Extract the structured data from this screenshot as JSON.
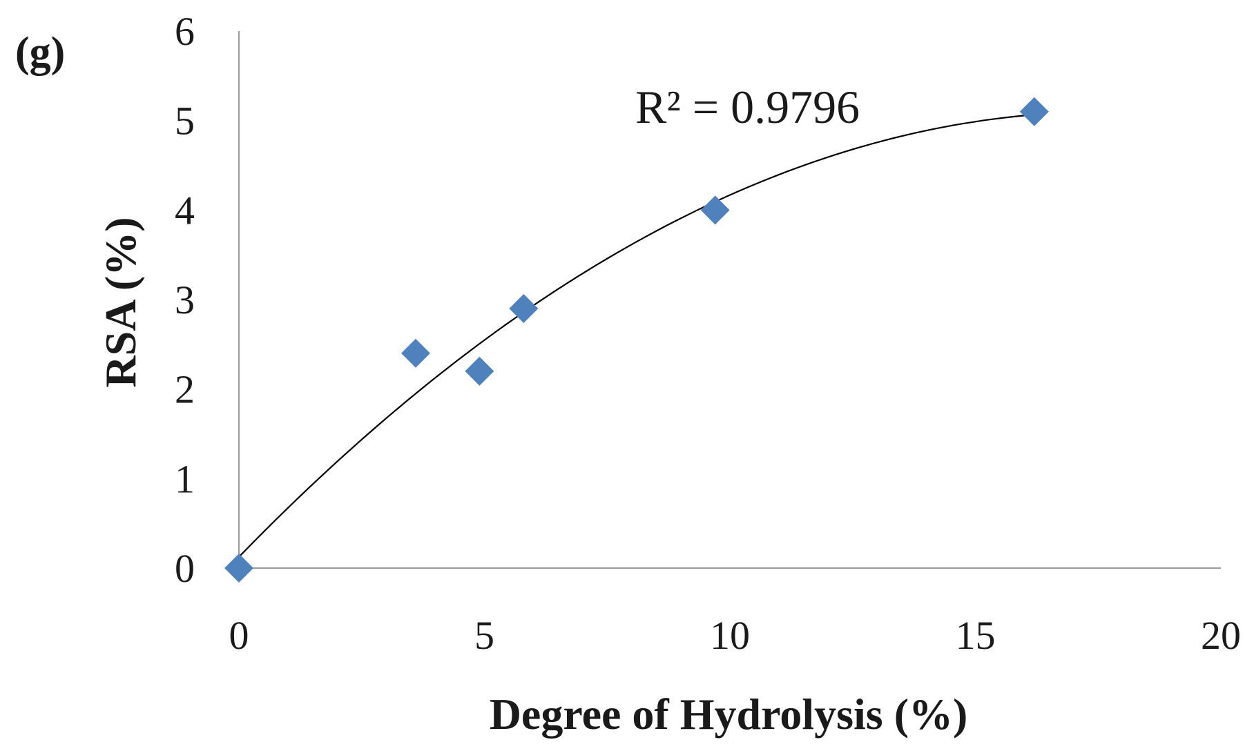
{
  "panel_label": "(g)",
  "chart_data": {
    "type": "scatter",
    "xlabel": "Degree of Hydrolysis  (%)",
    "ylabel": "RSA (%)",
    "xlim": [
      0,
      20
    ],
    "ylim": [
      0,
      6
    ],
    "x_ticks": [
      "0",
      "5",
      "10",
      "15",
      "20"
    ],
    "y_ticks": [
      "0",
      "1",
      "2",
      "3",
      "4",
      "5",
      "6"
    ],
    "grid": false,
    "marker": "diamond",
    "marker_color": "#4f81bd",
    "series": [
      {
        "x": [
          0,
          3.6,
          4.9,
          5.8,
          9.7,
          16.2
        ],
        "y": [
          0,
          2.4,
          2.2,
          2.9,
          4.0,
          5.1
        ]
      }
    ],
    "trendline": {
      "type": "polynomial",
      "r2_text": "R² = 0.9796"
    }
  }
}
